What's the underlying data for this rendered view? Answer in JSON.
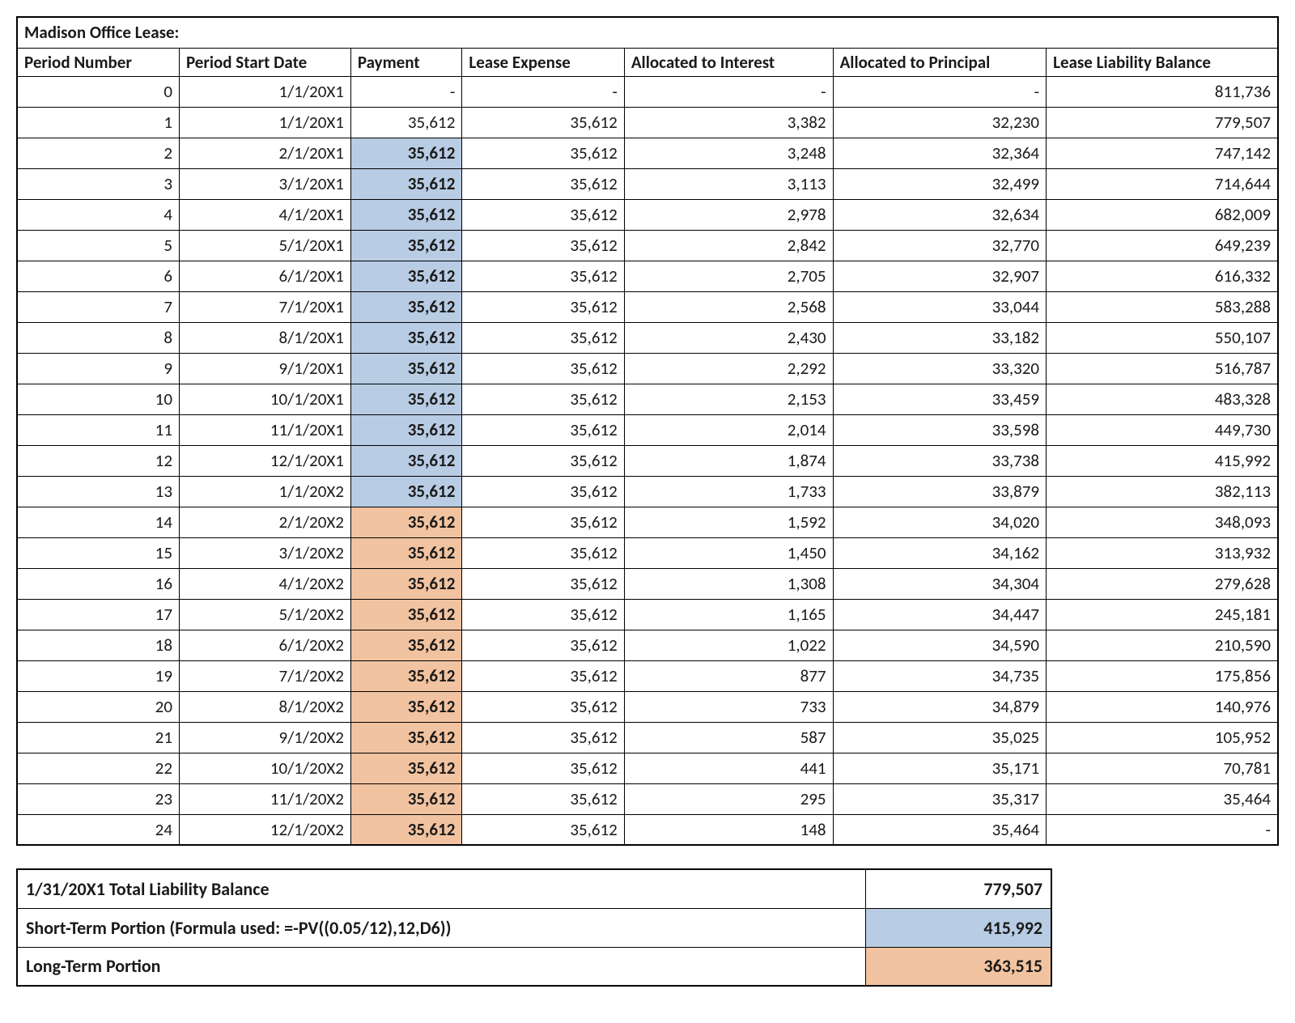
{
  "title": "Madison Office Lease:",
  "columns": [
    "Period Number",
    "Period Start Date",
    "Payment",
    "Lease Expense",
    "Allocated to Interest",
    "Allocated to Principal",
    "Lease Liability Balance"
  ],
  "highlight_colors": {
    "blue": "#b8cce4",
    "orange": "#f2c3a0"
  },
  "rows": [
    {
      "period": "0",
      "date": "1/1/20X1",
      "payment": "-",
      "expense": "-",
      "interest": "-",
      "principal": "-",
      "balance": "811,736",
      "hl": ""
    },
    {
      "period": "1",
      "date": "1/1/20X1",
      "payment": "35,612",
      "expense": "35,612",
      "interest": "3,382",
      "principal": "32,230",
      "balance": "779,507",
      "hl": ""
    },
    {
      "period": "2",
      "date": "2/1/20X1",
      "payment": "35,612",
      "expense": "35,612",
      "interest": "3,248",
      "principal": "32,364",
      "balance": "747,142",
      "hl": "blue"
    },
    {
      "period": "3",
      "date": "3/1/20X1",
      "payment": "35,612",
      "expense": "35,612",
      "interest": "3,113",
      "principal": "32,499",
      "balance": "714,644",
      "hl": "blue"
    },
    {
      "period": "4",
      "date": "4/1/20X1",
      "payment": "35,612",
      "expense": "35,612",
      "interest": "2,978",
      "principal": "32,634",
      "balance": "682,009",
      "hl": "blue"
    },
    {
      "period": "5",
      "date": "5/1/20X1",
      "payment": "35,612",
      "expense": "35,612",
      "interest": "2,842",
      "principal": "32,770",
      "balance": "649,239",
      "hl": "blue"
    },
    {
      "period": "6",
      "date": "6/1/20X1",
      "payment": "35,612",
      "expense": "35,612",
      "interest": "2,705",
      "principal": "32,907",
      "balance": "616,332",
      "hl": "blue"
    },
    {
      "period": "7",
      "date": "7/1/20X1",
      "payment": "35,612",
      "expense": "35,612",
      "interest": "2,568",
      "principal": "33,044",
      "balance": "583,288",
      "hl": "blue"
    },
    {
      "period": "8",
      "date": "8/1/20X1",
      "payment": "35,612",
      "expense": "35,612",
      "interest": "2,430",
      "principal": "33,182",
      "balance": "550,107",
      "hl": "blue"
    },
    {
      "period": "9",
      "date": "9/1/20X1",
      "payment": "35,612",
      "expense": "35,612",
      "interest": "2,292",
      "principal": "33,320",
      "balance": "516,787",
      "hl": "blue"
    },
    {
      "period": "10",
      "date": "10/1/20X1",
      "payment": "35,612",
      "expense": "35,612",
      "interest": "2,153",
      "principal": "33,459",
      "balance": "483,328",
      "hl": "blue"
    },
    {
      "period": "11",
      "date": "11/1/20X1",
      "payment": "35,612",
      "expense": "35,612",
      "interest": "2,014",
      "principal": "33,598",
      "balance": "449,730",
      "hl": "blue"
    },
    {
      "period": "12",
      "date": "12/1/20X1",
      "payment": "35,612",
      "expense": "35,612",
      "interest": "1,874",
      "principal": "33,738",
      "balance": "415,992",
      "hl": "blue"
    },
    {
      "period": "13",
      "date": "1/1/20X2",
      "payment": "35,612",
      "expense": "35,612",
      "interest": "1,733",
      "principal": "33,879",
      "balance": "382,113",
      "hl": "blue"
    },
    {
      "period": "14",
      "date": "2/1/20X2",
      "payment": "35,612",
      "expense": "35,612",
      "interest": "1,592",
      "principal": "34,020",
      "balance": "348,093",
      "hl": "orange"
    },
    {
      "period": "15",
      "date": "3/1/20X2",
      "payment": "35,612",
      "expense": "35,612",
      "interest": "1,450",
      "principal": "34,162",
      "balance": "313,932",
      "hl": "orange"
    },
    {
      "period": "16",
      "date": "4/1/20X2",
      "payment": "35,612",
      "expense": "35,612",
      "interest": "1,308",
      "principal": "34,304",
      "balance": "279,628",
      "hl": "orange"
    },
    {
      "period": "17",
      "date": "5/1/20X2",
      "payment": "35,612",
      "expense": "35,612",
      "interest": "1,165",
      "principal": "34,447",
      "balance": "245,181",
      "hl": "orange"
    },
    {
      "period": "18",
      "date": "6/1/20X2",
      "payment": "35,612",
      "expense": "35,612",
      "interest": "1,022",
      "principal": "34,590",
      "balance": "210,590",
      "hl": "orange"
    },
    {
      "period": "19",
      "date": "7/1/20X2",
      "payment": "35,612",
      "expense": "35,612",
      "interest": "877",
      "principal": "34,735",
      "balance": "175,856",
      "hl": "orange"
    },
    {
      "period": "20",
      "date": "8/1/20X2",
      "payment": "35,612",
      "expense": "35,612",
      "interest": "733",
      "principal": "34,879",
      "balance": "140,976",
      "hl": "orange"
    },
    {
      "period": "21",
      "date": "9/1/20X2",
      "payment": "35,612",
      "expense": "35,612",
      "interest": "587",
      "principal": "35,025",
      "balance": "105,952",
      "hl": "orange"
    },
    {
      "period": "22",
      "date": "10/1/20X2",
      "payment": "35,612",
      "expense": "35,612",
      "interest": "441",
      "principal": "35,171",
      "balance": "70,781",
      "hl": "orange"
    },
    {
      "period": "23",
      "date": "11/1/20X2",
      "payment": "35,612",
      "expense": "35,612",
      "interest": "295",
      "principal": "35,317",
      "balance": "35,464",
      "hl": "orange"
    },
    {
      "period": "24",
      "date": "12/1/20X2",
      "payment": "35,612",
      "expense": "35,612",
      "interest": "148",
      "principal": "35,464",
      "balance": "-",
      "hl": "orange"
    }
  ],
  "summary": [
    {
      "label": "1/31/20X1 Total Liability Balance",
      "value": "779,507",
      "hl": ""
    },
    {
      "label": "Short-Term Portion (Formula used: =-PV((0.05/12),12,D6))",
      "value": "415,992",
      "hl": "blue"
    },
    {
      "label": "Long-Term Portion",
      "value": "363,515",
      "hl": "orange"
    }
  ]
}
